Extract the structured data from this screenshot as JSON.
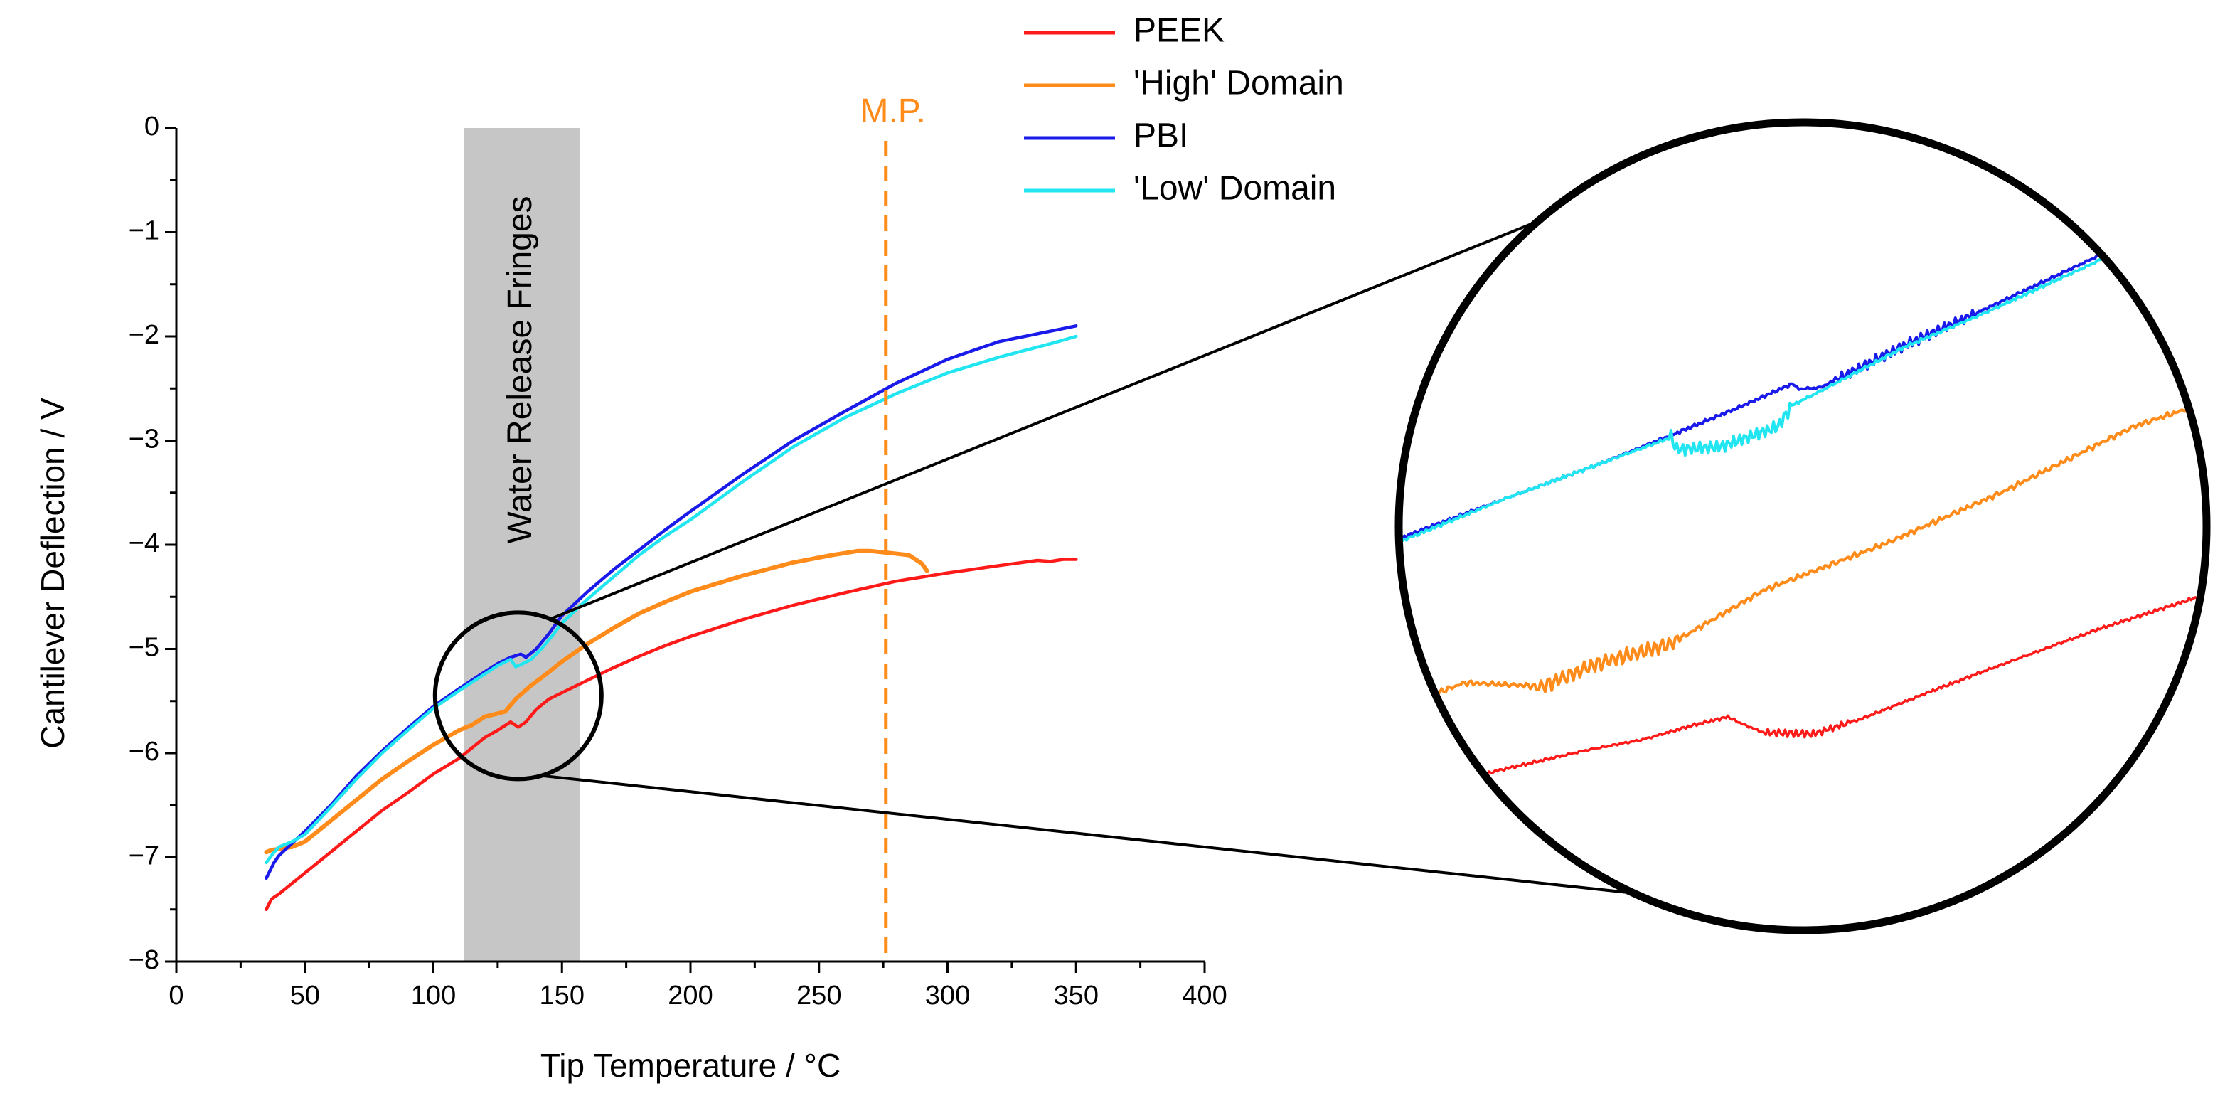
{
  "chart_data": {
    "type": "line",
    "title": "",
    "xlabel": "Tip Temperature / °C",
    "ylabel": "Cantilever Deflection / V",
    "xlim": [
      0,
      400
    ],
    "ylim": [
      -8,
      0
    ],
    "x_ticks": [
      0,
      50,
      100,
      150,
      200,
      250,
      300,
      350,
      400
    ],
    "y_ticks": [
      0,
      -1,
      -2,
      -3,
      -4,
      -5,
      -6,
      -7,
      -8
    ],
    "x_tick_labels": [
      "0",
      "50",
      "100",
      "150",
      "200",
      "250",
      "300",
      "350",
      "400"
    ],
    "y_tick_labels": [
      "0",
      "−1",
      "−2",
      "−3",
      "−4",
      "−5",
      "−6",
      "−7",
      "−8"
    ],
    "legend_position": "top-center",
    "colors": {
      "peek": "#ff1a1a",
      "high": "#ff8c1a",
      "pbi": "#1a1aeb",
      "low": "#22e5f2",
      "band": "#c6c6c6",
      "mp": "#ff8c1a"
    },
    "series": [
      {
        "key": "peek",
        "name": "PEEK",
        "x": [
          35,
          37,
          40,
          50,
          60,
          70,
          80,
          90,
          100,
          110,
          120,
          125,
          130,
          133,
          136,
          140,
          145,
          150,
          160,
          170,
          180,
          190,
          200,
          220,
          240,
          260,
          280,
          300,
          320,
          335,
          340,
          345,
          350
        ],
        "y": [
          -7.5,
          -7.4,
          -7.35,
          -7.15,
          -6.95,
          -6.75,
          -6.55,
          -6.38,
          -6.2,
          -6.05,
          -5.85,
          -5.78,
          -5.7,
          -5.75,
          -5.7,
          -5.58,
          -5.48,
          -5.42,
          -5.3,
          -5.18,
          -5.07,
          -4.97,
          -4.88,
          -4.72,
          -4.58,
          -4.46,
          -4.35,
          -4.27,
          -4.2,
          -4.15,
          -4.16,
          -4.14,
          -4.14
        ]
      },
      {
        "key": "high",
        "name": "'High' Domain",
        "x": [
          35,
          37,
          40,
          45,
          50,
          60,
          70,
          80,
          90,
          100,
          110,
          115,
          120,
          125,
          128,
          132,
          138,
          145,
          150,
          160,
          170,
          180,
          190,
          200,
          220,
          240,
          255,
          265,
          270,
          278,
          285,
          290,
          292
        ],
        "y": [
          -6.95,
          -6.93,
          -6.92,
          -6.9,
          -6.85,
          -6.65,
          -6.45,
          -6.25,
          -6.08,
          -5.92,
          -5.78,
          -5.73,
          -5.65,
          -5.62,
          -5.6,
          -5.48,
          -5.35,
          -5.22,
          -5.12,
          -4.95,
          -4.8,
          -4.66,
          -4.55,
          -4.45,
          -4.3,
          -4.17,
          -4.1,
          -4.06,
          -4.06,
          -4.08,
          -4.1,
          -4.18,
          -4.25
        ]
      },
      {
        "key": "pbi",
        "name": "PBI",
        "x": [
          35,
          38,
          40,
          50,
          60,
          70,
          80,
          90,
          100,
          110,
          115,
          120,
          125,
          130,
          134,
          136,
          140,
          145,
          150,
          160,
          170,
          180,
          190,
          200,
          220,
          240,
          260,
          280,
          300,
          320,
          340,
          350
        ],
        "y": [
          -7.2,
          -7.05,
          -6.98,
          -6.75,
          -6.5,
          -6.22,
          -5.98,
          -5.76,
          -5.55,
          -5.38,
          -5.3,
          -5.22,
          -5.14,
          -5.08,
          -5.05,
          -5.08,
          -5.0,
          -4.85,
          -4.68,
          -4.45,
          -4.24,
          -4.05,
          -3.86,
          -3.68,
          -3.33,
          -3.0,
          -2.72,
          -2.45,
          -2.22,
          -2.05,
          -1.95,
          -1.9
        ]
      },
      {
        "key": "low",
        "name": "'Low' Domain",
        "x": [
          35,
          38,
          40,
          45,
          50,
          60,
          70,
          80,
          90,
          100,
          110,
          115,
          120,
          125,
          130,
          132,
          134,
          138,
          142,
          146,
          150,
          160,
          170,
          180,
          190,
          200,
          220,
          240,
          260,
          280,
          300,
          320,
          340,
          350
        ],
        "y": [
          -7.05,
          -6.95,
          -6.9,
          -6.85,
          -6.78,
          -6.52,
          -6.25,
          -6.0,
          -5.78,
          -5.57,
          -5.4,
          -5.32,
          -5.24,
          -5.16,
          -5.1,
          -5.17,
          -5.15,
          -5.1,
          -5.0,
          -4.88,
          -4.75,
          -4.52,
          -4.31,
          -4.1,
          -3.92,
          -3.76,
          -3.4,
          -3.06,
          -2.78,
          -2.55,
          -2.35,
          -2.2,
          -2.07,
          -2.0
        ]
      }
    ],
    "annotations": {
      "band_label": "Water Release Fringes",
      "band_range": [
        112,
        157
      ],
      "mp_label": "M.P.",
      "mp_x": 276,
      "zoom_center": [
        133,
        -5.45
      ]
    }
  }
}
